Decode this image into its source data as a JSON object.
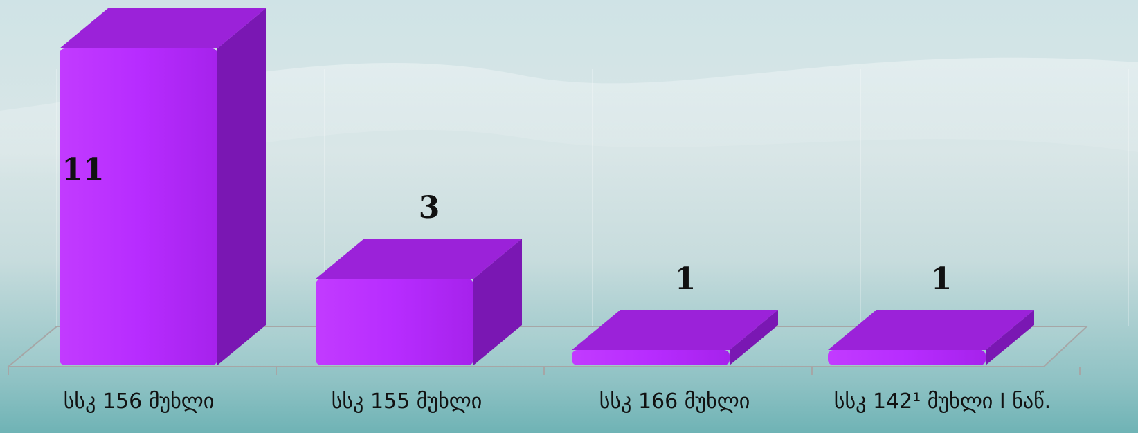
{
  "chart_data": {
    "type": "bar",
    "style": "3d-column",
    "categories": [
      "სსკ 156 მუხლი",
      "სსკ 155 მუხლი",
      "სსკ 166 მუხლი",
      "სსკ 142¹ მუხლი I ნაწ."
    ],
    "values": [
      11,
      3,
      1,
      1
    ],
    "title": "",
    "xlabel": "",
    "ylabel": "",
    "ylim": [
      0,
      11
    ],
    "grid": false,
    "legend": "none",
    "data_labels": true,
    "colors": {
      "bar_front": "#b72cff",
      "bar_top": "#9b22d9",
      "bar_side": "#7a17b3",
      "floor_line": "#a6a6a6"
    }
  }
}
